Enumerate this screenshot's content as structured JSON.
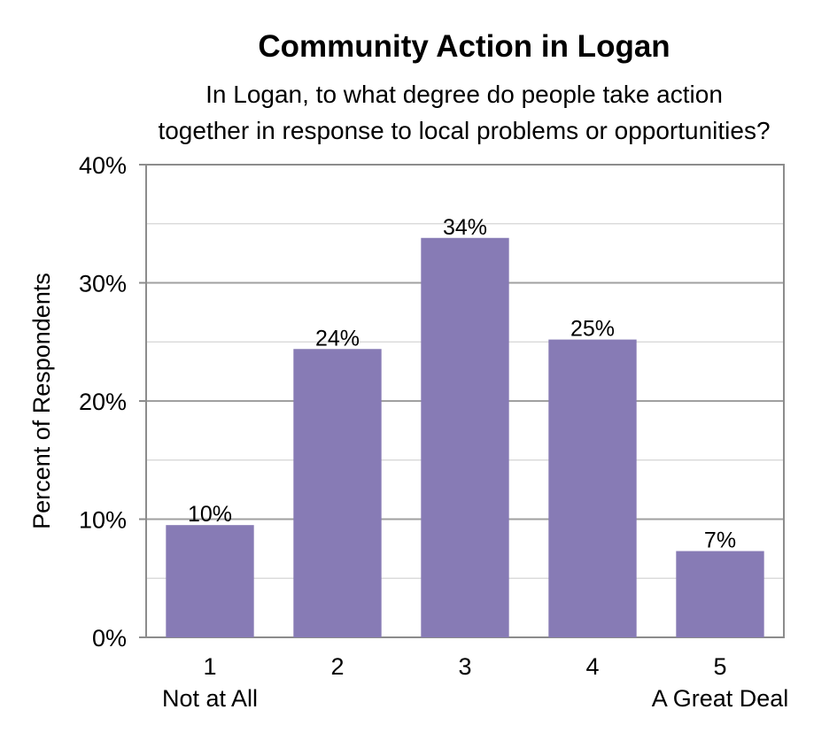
{
  "chart_data": {
    "type": "bar",
    "title": "Community Action in Logan",
    "subtitle": [
      "In Logan, to what degree do people take action",
      "together in response to local problems or opportunities?"
    ],
    "ylabel": "Percent of Respondents",
    "xlabel": "",
    "ylim": [
      0,
      40
    ],
    "yticks": [
      0,
      10,
      20,
      30,
      40
    ],
    "ytick_labels": [
      "0%",
      "10%",
      "20%",
      "30%",
      "40%"
    ],
    "minor_gridlines": [
      5,
      15,
      25,
      35
    ],
    "categories": [
      "1",
      "2",
      "3",
      "4",
      "5"
    ],
    "category_sublabels": [
      "Not at All",
      "",
      "",
      "",
      "A Great Deal"
    ],
    "values": [
      9.5,
      24.4,
      33.8,
      25.2,
      7.3
    ],
    "data_labels": [
      "10%",
      "24%",
      "34%",
      "25%",
      "7%"
    ],
    "bar_color": "#877bb5",
    "grid": true,
    "legend": "none"
  }
}
